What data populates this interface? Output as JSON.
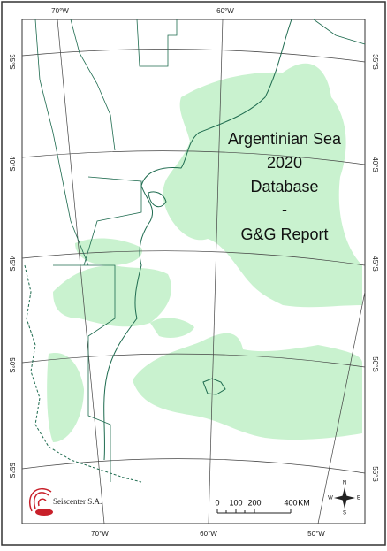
{
  "map": {
    "title_lines": [
      "Argentinian Sea",
      "2020",
      "Database",
      "-",
      "G&G Report"
    ],
    "graticule": {
      "top": [
        "70°W",
        "60°W"
      ],
      "bottom": [
        "70°W",
        "60°W",
        "50°W"
      ],
      "left": [
        "35°S",
        "40°S",
        "45°S",
        "50°S",
        "55°S"
      ],
      "right": [
        "35°S",
        "40°S",
        "45°S",
        "50°S",
        "55°S"
      ]
    },
    "scale_bar": {
      "labels": [
        "0",
        "100",
        "200",
        "400"
      ],
      "unit": "KM"
    },
    "logo": "Seiscenter S.A.",
    "compass": [
      "N",
      "S",
      "E",
      "W"
    ]
  }
}
